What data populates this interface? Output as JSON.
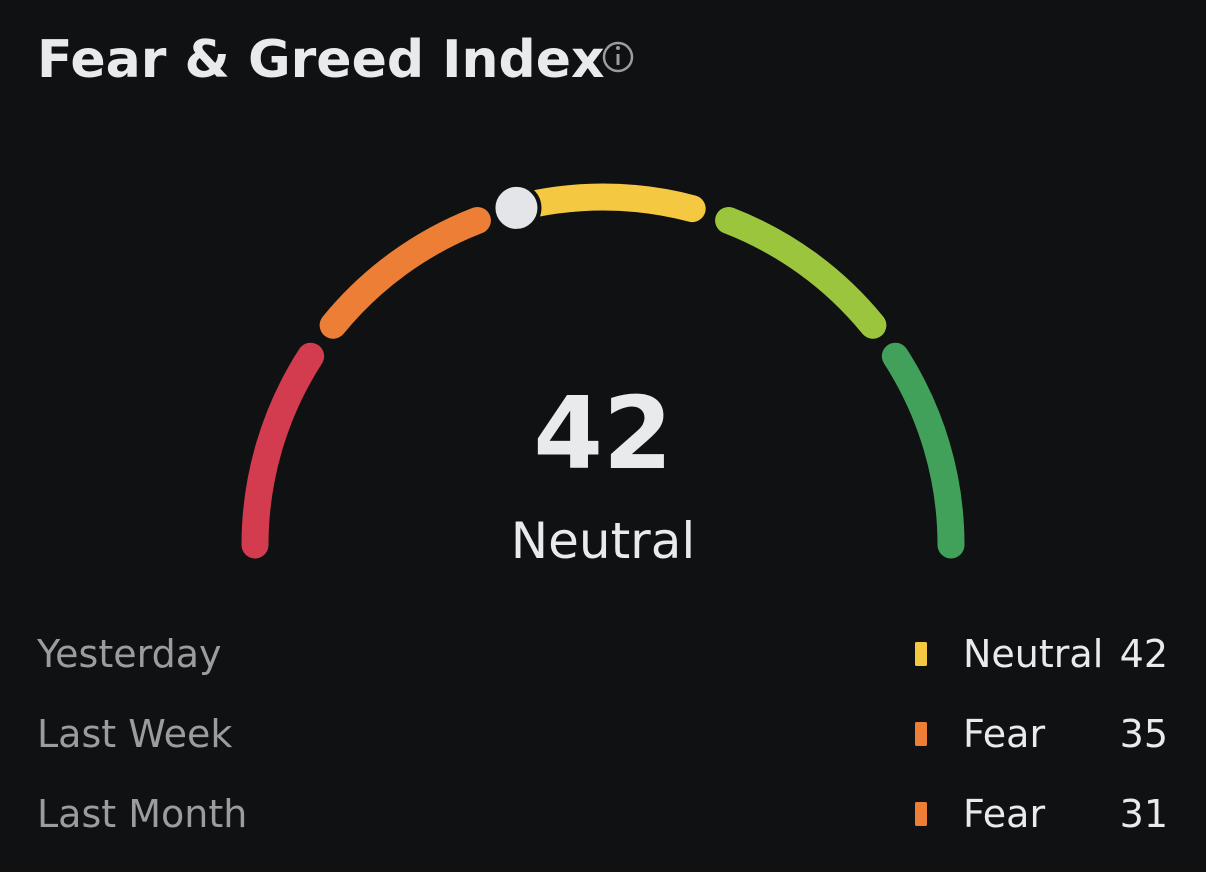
{
  "title": "Fear & Greed Index",
  "gauge": {
    "value": 42,
    "label": "Neutral",
    "range": [
      0,
      100
    ],
    "segment_colors": [
      "#d23c4e",
      "#ec7f35",
      "#f5c842",
      "#9bc53d",
      "#41a15a"
    ],
    "pointer_color": "#e4e5e8"
  },
  "history": [
    {
      "period": "Yesterday",
      "status": "Neutral",
      "value": 42,
      "color": "#f5c842"
    },
    {
      "period": "Last Week",
      "status": "Fear",
      "value": 35,
      "color": "#ec7f35"
    },
    {
      "period": "Last Month",
      "status": "Fear",
      "value": 31,
      "color": "#ec7f35"
    }
  ]
}
